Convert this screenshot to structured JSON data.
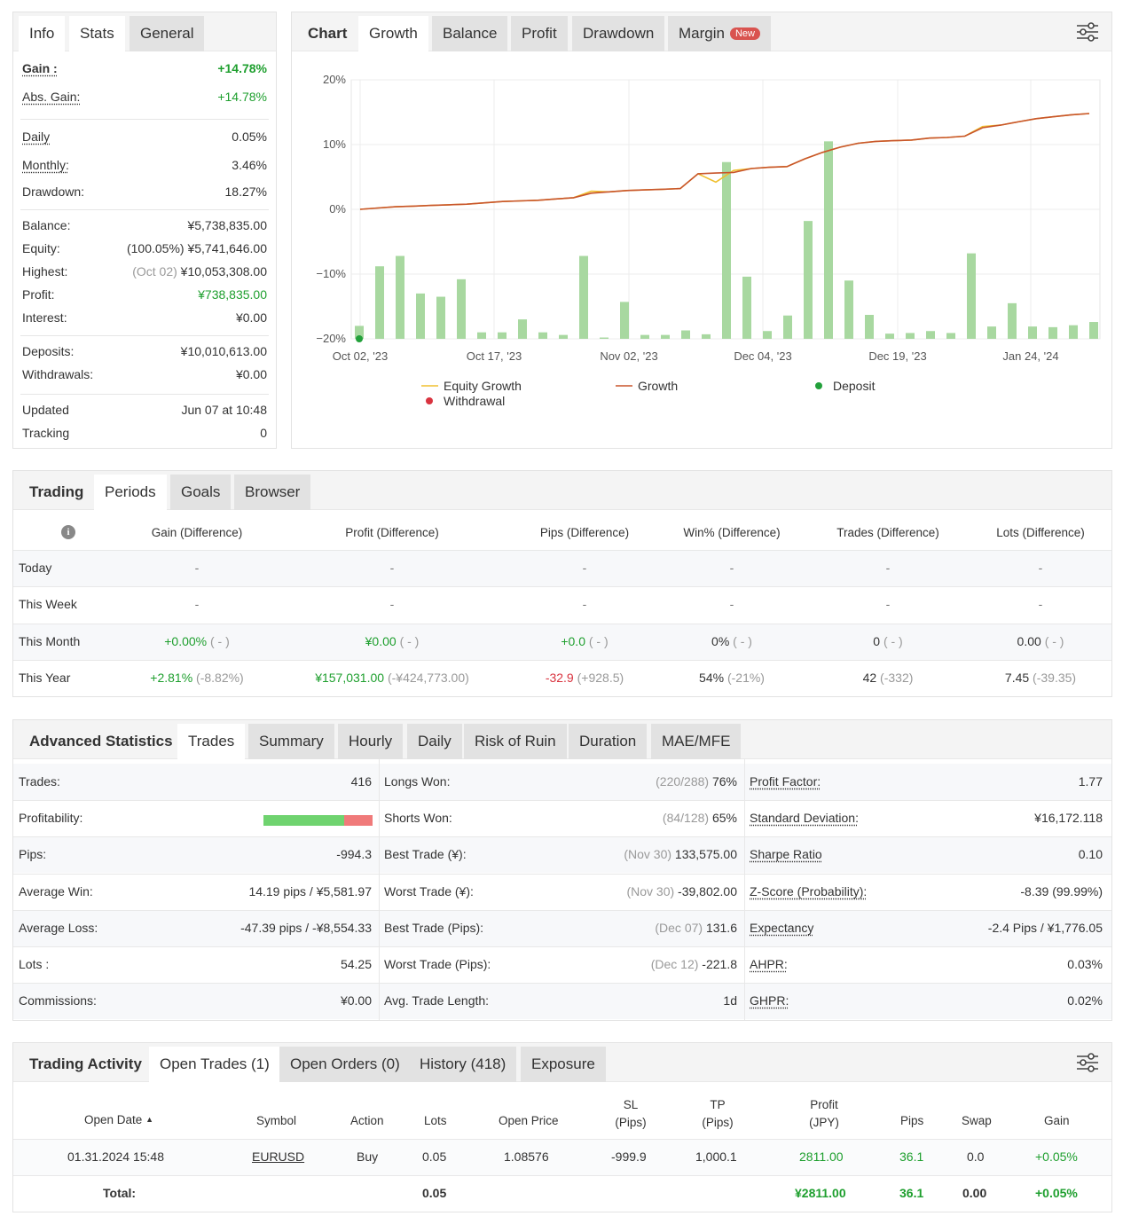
{
  "info_panel": {
    "tabs": [
      "Info",
      "Stats",
      "General"
    ],
    "rows": [
      {
        "label": "Gain :",
        "value": "+14.78%"
      },
      {
        "label": "Abs. Gain:",
        "value": "+14.78%"
      },
      {
        "label": "Daily",
        "value": "0.05%"
      },
      {
        "label": "Monthly:",
        "value": "3.46%"
      },
      {
        "label": "Drawdown:",
        "value": "18.27%"
      },
      {
        "label": "Balance:",
        "value": "¥5,738,835.00"
      },
      {
        "label": "Equity:",
        "prefix": "(100.05%)",
        "value": "¥5,741,646.00"
      },
      {
        "label": "Highest:",
        "prefix": "(Oct 02)",
        "value": "¥10,053,308.00"
      },
      {
        "label": "Profit:",
        "value": "¥738,835.00"
      },
      {
        "label": "Interest:",
        "value": "¥0.00"
      },
      {
        "label": "Deposits:",
        "value": "¥10,010,613.00"
      },
      {
        "label": "Withdrawals:",
        "value": "¥0.00"
      },
      {
        "label": "Updated",
        "value": "Jun 07 at 10:48"
      },
      {
        "label": "Tracking",
        "value": "0"
      }
    ]
  },
  "chart_panel": {
    "tabs": [
      "Chart",
      "Growth",
      "Balance",
      "Profit",
      "Drawdown",
      "Margin"
    ],
    "new_badge": "New",
    "settings_icon": "sliders-icon"
  },
  "chart_data": {
    "type": "line",
    "title": "",
    "ylim": [
      -20,
      20
    ],
    "y_ticks": [
      "20%",
      "10%",
      "0%",
      "−10%",
      "−20%"
    ],
    "x_ticks": [
      "Oct 02, '23",
      "Oct 17, '23",
      "Nov 02, '23",
      "Dec 04, '23",
      "Dec 19, '23",
      "Jan 24, '24"
    ],
    "legend": [
      "Equity Growth",
      "Growth",
      "Deposit",
      "Withdrawal"
    ],
    "colors": {
      "growth": "#c8552c",
      "equity": "#f0c030",
      "bars": "#a8d8a0",
      "deposit": "#22a03a",
      "withdrawal": "#d9333f"
    },
    "growth_series": [
      0.0,
      0.2,
      0.4,
      0.5,
      0.6,
      0.7,
      0.8,
      1.0,
      1.2,
      1.3,
      1.4,
      1.6,
      1.8,
      2.5,
      2.7,
      2.9,
      3.0,
      3.1,
      3.2,
      5.5,
      5.6,
      5.7,
      6.3,
      6.5,
      6.6,
      7.8,
      8.8,
      9.6,
      10.2,
      10.5,
      10.6,
      10.7,
      11.0,
      11.1,
      11.3,
      12.6,
      13.0,
      13.5,
      14.0,
      14.3,
      14.6,
      14.8
    ],
    "equity_series": [
      0.0,
      0.2,
      0.4,
      0.5,
      0.6,
      0.7,
      0.8,
      1.0,
      1.2,
      1.3,
      1.4,
      1.6,
      1.8,
      2.8,
      2.7,
      2.9,
      3.0,
      3.1,
      3.2,
      5.5,
      4.2,
      6.0,
      6.3,
      6.5,
      6.6,
      7.8,
      8.8,
      9.6,
      10.2,
      10.5,
      10.6,
      10.7,
      11.0,
      11.1,
      11.3,
      12.8,
      13.0,
      13.5,
      14.0,
      14.3,
      14.6,
      14.8
    ],
    "bars": [
      -18,
      -8.8,
      -7.2,
      -13,
      -13.5,
      -10.8,
      -19,
      -19,
      -17,
      -19,
      -19.4,
      -7.2,
      -19.8,
      -14.3,
      -19.4,
      -19.4,
      -18.7,
      -19.3,
      7.3,
      -10.4,
      -18.8,
      -16.4,
      -1.8,
      10.5,
      -11,
      -16.3,
      -19.2,
      -19.1,
      -18.8,
      -19.1,
      -6.8,
      -18.1,
      -14.5,
      -18.1,
      -18.2,
      -17.9,
      -17.4
    ],
    "deposit_marker": {
      "x_index": 0,
      "y": -20
    }
  },
  "trading_panel": {
    "tabs": [
      "Trading",
      "Periods",
      "Goals",
      "Browser"
    ],
    "headers": [
      "Gain (Difference)",
      "Profit (Difference)",
      "Pips (Difference)",
      "Win% (Difference)",
      "Trades (Difference)",
      "Lots (Difference)"
    ],
    "rows": [
      {
        "label": "Today",
        "cells": [
          [
            "-",
            ""
          ],
          [
            "-",
            ""
          ],
          [
            "-",
            ""
          ],
          [
            "-",
            ""
          ],
          [
            "-",
            ""
          ],
          [
            "-",
            ""
          ]
        ]
      },
      {
        "label": "This Week",
        "cells": [
          [
            "-",
            ""
          ],
          [
            "-",
            ""
          ],
          [
            "-",
            ""
          ],
          [
            "-",
            ""
          ],
          [
            "-",
            ""
          ],
          [
            "-",
            ""
          ]
        ]
      },
      {
        "label": "This Month",
        "cells": [
          [
            "+0.00%",
            "( - )"
          ],
          [
            "¥0.00",
            "( - )"
          ],
          [
            "+0.0",
            "( - )"
          ],
          [
            "0%",
            "( - )"
          ],
          [
            "0",
            "( - )"
          ],
          [
            "0.00",
            "( - )"
          ]
        ]
      },
      {
        "label": "This Year",
        "cells": [
          [
            "+2.81%",
            "(-8.82%)"
          ],
          [
            "¥157,031.00",
            "(-¥424,773.00)"
          ],
          [
            "-32.9",
            "(+928.5)"
          ],
          [
            "54%",
            "(-21%)"
          ],
          [
            "42",
            "(-332)"
          ],
          [
            "7.45",
            "(-39.35)"
          ]
        ]
      }
    ]
  },
  "advanced_panel": {
    "tabs": [
      "Advanced Statistics",
      "Trades",
      "Summary",
      "Hourly",
      "Daily",
      "Risk of Ruin",
      "Duration",
      "MAE/MFE"
    ],
    "profitability": 0.74,
    "col1": [
      {
        "label": "Trades:",
        "value": "416"
      },
      {
        "label": "Profitability:",
        "value": ""
      },
      {
        "label": "Pips:",
        "value": "-994.3"
      },
      {
        "label": "Average Win:",
        "value": "14.19 pips / ¥5,581.97"
      },
      {
        "label": "Average Loss:",
        "value": "-47.39 pips / -¥8,554.33"
      },
      {
        "label": "Lots :",
        "value": "54.25"
      },
      {
        "label": "Commissions:",
        "value": "¥0.00"
      }
    ],
    "col2": [
      {
        "label": "Longs Won:",
        "note": "(220/288)",
        "value": "76%"
      },
      {
        "label": "Shorts Won:",
        "note": "(84/128)",
        "value": "65%"
      },
      {
        "label": "Best Trade (¥):",
        "note": "(Nov 30)",
        "value": "133,575.00"
      },
      {
        "label": "Worst Trade (¥):",
        "note": "(Nov 30)",
        "value": "-39,802.00"
      },
      {
        "label": "Best Trade (Pips):",
        "note": "(Dec 07)",
        "value": "131.6"
      },
      {
        "label": "Worst Trade (Pips):",
        "note": "(Dec 12)",
        "value": "-221.8"
      },
      {
        "label": "Avg. Trade Length:",
        "note": "",
        "value": "1d"
      }
    ],
    "col3": [
      {
        "label": "Profit Factor:",
        "value": "1.77"
      },
      {
        "label": "Standard Deviation:",
        "value": "¥16,172.118"
      },
      {
        "label": "Sharpe Ratio",
        "value": "0.10"
      },
      {
        "label": "Z-Score (Probability):",
        "value": "-8.39 (99.99%)"
      },
      {
        "label": "Expectancy",
        "value": "-2.4 Pips / ¥1,776.05"
      },
      {
        "label": "AHPR:",
        "value": "0.03%"
      },
      {
        "label": "GHPR:",
        "value": "0.02%"
      }
    ]
  },
  "activity_panel": {
    "tabs": [
      "Trading Activity",
      "Open Trades (1)",
      "Open Orders (0)",
      "History (418)",
      "Exposure"
    ],
    "headers": {
      "open_date": "Open Date",
      "symbol": "Symbol",
      "action": "Action",
      "lots": "Lots",
      "open_price": "Open Price",
      "sl1": "SL",
      "sl2": "(Pips)",
      "tp1": "TP",
      "tp2": "(Pips)",
      "profit1": "Profit",
      "profit2": "(JPY)",
      "pips": "Pips",
      "swap": "Swap",
      "gain": "Gain"
    },
    "sort_indicator": "▲",
    "trade": {
      "open_date": "01.31.2024 15:48",
      "symbol": "EURUSD",
      "action": "Buy",
      "lots": "0.05",
      "open_price": "1.08576",
      "sl": "-999.9",
      "tp": "1,000.1",
      "profit": "2811.00",
      "pips": "36.1",
      "swap": "0.0",
      "gain": "+0.05%"
    },
    "total": {
      "label": "Total:",
      "lots": "0.05",
      "profit": "¥2811.00",
      "pips": "36.1",
      "swap": "0.00",
      "gain": "+0.05%"
    }
  }
}
